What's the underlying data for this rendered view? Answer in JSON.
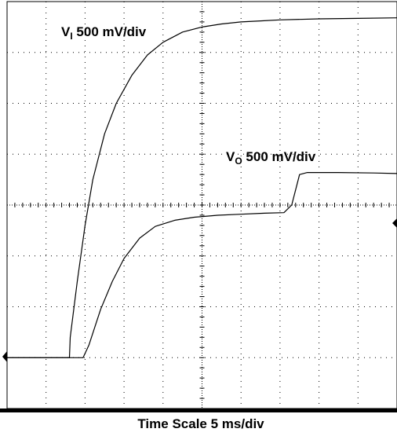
{
  "chart_data": {
    "type": "line",
    "title": "",
    "xlabel": "Time Scale 5 ms/div",
    "ylabel": "",
    "x_unit": "div",
    "y_unit": "div",
    "xlim": [
      0,
      10
    ],
    "ylim": [
      -4,
      4
    ],
    "grid": true,
    "series": [
      {
        "name": "VI",
        "label_main": "V",
        "label_sub": "I",
        "label_rest": " 500 mV/div",
        "points": [
          [
            0.0,
            -3.0
          ],
          [
            1.6,
            -3.0
          ],
          [
            1.62,
            -2.6
          ],
          [
            1.8,
            -1.5
          ],
          [
            2.0,
            -0.4
          ],
          [
            2.2,
            0.5
          ],
          [
            2.5,
            1.4
          ],
          [
            2.8,
            2.0
          ],
          [
            3.2,
            2.55
          ],
          [
            3.6,
            2.95
          ],
          [
            4.0,
            3.2
          ],
          [
            4.5,
            3.4
          ],
          [
            5.0,
            3.5
          ],
          [
            5.5,
            3.56
          ],
          [
            6.0,
            3.6
          ],
          [
            6.5,
            3.62
          ],
          [
            7.0,
            3.64
          ],
          [
            8.0,
            3.66
          ],
          [
            9.0,
            3.67
          ],
          [
            10.0,
            3.68
          ]
        ]
      },
      {
        "name": "VO",
        "label_main": "V",
        "label_sub": "O",
        "label_rest": " 500 mV/div",
        "points": [
          [
            0.0,
            -3.0
          ],
          [
            1.95,
            -3.0
          ],
          [
            2.1,
            -2.75
          ],
          [
            2.4,
            -2.05
          ],
          [
            2.7,
            -1.5
          ],
          [
            3.0,
            -1.05
          ],
          [
            3.4,
            -0.65
          ],
          [
            3.8,
            -0.42
          ],
          [
            4.3,
            -0.3
          ],
          [
            4.8,
            -0.24
          ],
          [
            5.4,
            -0.2
          ],
          [
            6.0,
            -0.18
          ],
          [
            6.6,
            -0.16
          ],
          [
            7.1,
            -0.15
          ],
          [
            7.3,
            0.0
          ],
          [
            7.5,
            0.6
          ],
          [
            7.7,
            0.64
          ],
          [
            8.5,
            0.64
          ],
          [
            9.4,
            0.63
          ],
          [
            10.0,
            0.62
          ]
        ]
      }
    ]
  }
}
